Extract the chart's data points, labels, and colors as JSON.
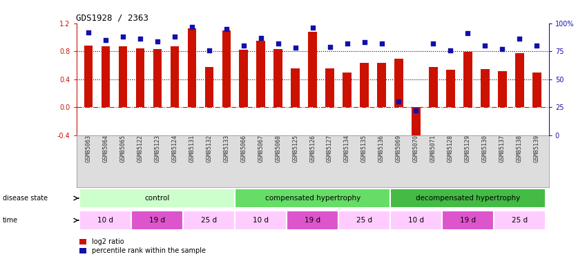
{
  "title": "GDS1928 / 2363",
  "samples": [
    "GSM85063",
    "GSM85064",
    "GSM85065",
    "GSM85122",
    "GSM85123",
    "GSM85124",
    "GSM85131",
    "GSM85132",
    "GSM85133",
    "GSM85066",
    "GSM85067",
    "GSM85068",
    "GSM85125",
    "GSM85126",
    "GSM85127",
    "GSM85134",
    "GSM85135",
    "GSM85136",
    "GSM85069",
    "GSM85070",
    "GSM85071",
    "GSM85128",
    "GSM85129",
    "GSM85130",
    "GSM85137",
    "GSM85138",
    "GSM85139"
  ],
  "log2_ratio": [
    0.88,
    0.87,
    0.87,
    0.84,
    0.83,
    0.87,
    1.13,
    0.58,
    1.1,
    0.82,
    0.95,
    0.83,
    0.56,
    1.08,
    0.56,
    0.5,
    0.64,
    0.64,
    0.69,
    -0.43,
    0.58,
    0.54,
    0.79,
    0.55,
    0.52,
    0.77,
    0.5
  ],
  "percentile_rank": [
    92,
    85,
    88,
    86,
    84,
    88,
    97,
    76,
    95,
    80,
    87,
    82,
    78,
    96,
    79,
    82,
    83,
    82,
    30,
    22,
    82,
    76,
    91,
    80,
    77,
    86,
    80
  ],
  "bar_color": "#cc1100",
  "dot_color": "#1111aa",
  "background_color": "#ffffff",
  "zero_line_color": "#cc1100",
  "ylim": [
    -0.4,
    1.2
  ],
  "yticks_left": [
    -0.4,
    0.0,
    0.4,
    0.8,
    1.2
  ],
  "yticks_right": [
    0,
    25,
    50,
    75,
    100
  ],
  "disease_state_groups": [
    {
      "label": "control",
      "start": 0,
      "end": 9,
      "color": "#ccffcc"
    },
    {
      "label": "compensated hypertrophy",
      "start": 9,
      "end": 18,
      "color": "#66dd66"
    },
    {
      "label": "decompensated hypertrophy",
      "start": 18,
      "end": 27,
      "color": "#44bb44"
    }
  ],
  "time_groups": [
    {
      "label": "10 d",
      "start": 0,
      "end": 3,
      "color": "#ffccff"
    },
    {
      "label": "19 d",
      "start": 3,
      "end": 6,
      "color": "#dd55cc"
    },
    {
      "label": "25 d",
      "start": 6,
      "end": 9,
      "color": "#ffccff"
    },
    {
      "label": "10 d",
      "start": 9,
      "end": 12,
      "color": "#ffccff"
    },
    {
      "label": "19 d",
      "start": 12,
      "end": 15,
      "color": "#dd55cc"
    },
    {
      "label": "25 d",
      "start": 15,
      "end": 18,
      "color": "#ffccff"
    },
    {
      "label": "10 d",
      "start": 18,
      "end": 21,
      "color": "#ffccff"
    },
    {
      "label": "19 d",
      "start": 21,
      "end": 24,
      "color": "#dd55cc"
    },
    {
      "label": "25 d",
      "start": 24,
      "end": 27,
      "color": "#ffccff"
    }
  ],
  "xtick_bg_color": "#dddddd",
  "legend_bar_label": "log2 ratio",
  "legend_dot_label": "percentile rank within the sample"
}
